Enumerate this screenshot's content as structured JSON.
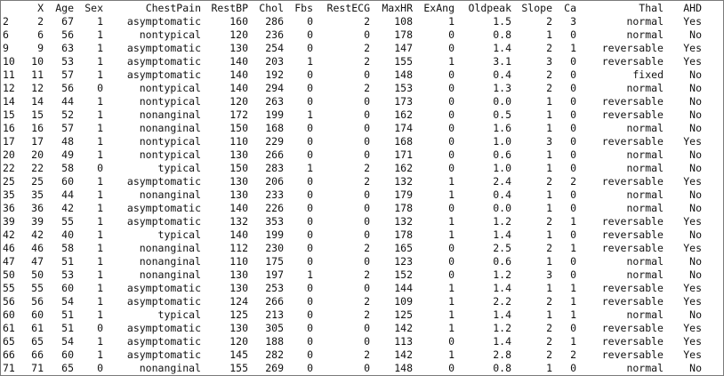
{
  "table": {
    "columns": [
      "",
      "X",
      "Age",
      "Sex",
      "ChestPain",
      "RestBP",
      "Chol",
      "Fbs",
      "RestECG",
      "MaxHR",
      "ExAng",
      "Oldpeak",
      "Slope",
      "Ca",
      "Thal",
      "AHD"
    ],
    "rows": [
      [
        "2",
        "2",
        "67",
        "1",
        "asymptomatic",
        "160",
        "286",
        "0",
        "2",
        "108",
        "1",
        "1.5",
        "2",
        "3",
        "normal",
        "Yes"
      ],
      [
        "6",
        "6",
        "56",
        "1",
        "nontypical",
        "120",
        "236",
        "0",
        "0",
        "178",
        "0",
        "0.8",
        "1",
        "0",
        "normal",
        "No"
      ],
      [
        "9",
        "9",
        "63",
        "1",
        "asymptomatic",
        "130",
        "254",
        "0",
        "2",
        "147",
        "0",
        "1.4",
        "2",
        "1",
        "reversable",
        "Yes"
      ],
      [
        "10",
        "10",
        "53",
        "1",
        "asymptomatic",
        "140",
        "203",
        "1",
        "2",
        "155",
        "1",
        "3.1",
        "3",
        "0",
        "reversable",
        "Yes"
      ],
      [
        "11",
        "11",
        "57",
        "1",
        "asymptomatic",
        "140",
        "192",
        "0",
        "0",
        "148",
        "0",
        "0.4",
        "2",
        "0",
        "fixed",
        "No"
      ],
      [
        "12",
        "12",
        "56",
        "0",
        "nontypical",
        "140",
        "294",
        "0",
        "2",
        "153",
        "0",
        "1.3",
        "2",
        "0",
        "normal",
        "No"
      ],
      [
        "14",
        "14",
        "44",
        "1",
        "nontypical",
        "120",
        "263",
        "0",
        "0",
        "173",
        "0",
        "0.0",
        "1",
        "0",
        "reversable",
        "No"
      ],
      [
        "15",
        "15",
        "52",
        "1",
        "nonanginal",
        "172",
        "199",
        "1",
        "0",
        "162",
        "0",
        "0.5",
        "1",
        "0",
        "reversable",
        "No"
      ],
      [
        "16",
        "16",
        "57",
        "1",
        "nonanginal",
        "150",
        "168",
        "0",
        "0",
        "174",
        "0",
        "1.6",
        "1",
        "0",
        "normal",
        "No"
      ],
      [
        "17",
        "17",
        "48",
        "1",
        "nontypical",
        "110",
        "229",
        "0",
        "0",
        "168",
        "0",
        "1.0",
        "3",
        "0",
        "reversable",
        "Yes"
      ],
      [
        "20",
        "20",
        "49",
        "1",
        "nontypical",
        "130",
        "266",
        "0",
        "0",
        "171",
        "0",
        "0.6",
        "1",
        "0",
        "normal",
        "No"
      ],
      [
        "22",
        "22",
        "58",
        "0",
        "typical",
        "150",
        "283",
        "1",
        "2",
        "162",
        "0",
        "1.0",
        "1",
        "0",
        "normal",
        "No"
      ],
      [
        "25",
        "25",
        "60",
        "1",
        "asymptomatic",
        "130",
        "206",
        "0",
        "2",
        "132",
        "1",
        "2.4",
        "2",
        "2",
        "reversable",
        "Yes"
      ],
      [
        "35",
        "35",
        "44",
        "1",
        "nonanginal",
        "130",
        "233",
        "0",
        "0",
        "179",
        "1",
        "0.4",
        "1",
        "0",
        "normal",
        "No"
      ],
      [
        "36",
        "36",
        "42",
        "1",
        "asymptomatic",
        "140",
        "226",
        "0",
        "0",
        "178",
        "0",
        "0.0",
        "1",
        "0",
        "normal",
        "No"
      ],
      [
        "39",
        "39",
        "55",
        "1",
        "asymptomatic",
        "132",
        "353",
        "0",
        "0",
        "132",
        "1",
        "1.2",
        "2",
        "1",
        "reversable",
        "Yes"
      ],
      [
        "42",
        "42",
        "40",
        "1",
        "typical",
        "140",
        "199",
        "0",
        "0",
        "178",
        "1",
        "1.4",
        "1",
        "0",
        "reversable",
        "No"
      ],
      [
        "46",
        "46",
        "58",
        "1",
        "nonanginal",
        "112",
        "230",
        "0",
        "2",
        "165",
        "0",
        "2.5",
        "2",
        "1",
        "reversable",
        "Yes"
      ],
      [
        "47",
        "47",
        "51",
        "1",
        "nonanginal",
        "110",
        "175",
        "0",
        "0",
        "123",
        "0",
        "0.6",
        "1",
        "0",
        "normal",
        "No"
      ],
      [
        "50",
        "50",
        "53",
        "1",
        "nonanginal",
        "130",
        "197",
        "1",
        "2",
        "152",
        "0",
        "1.2",
        "3",
        "0",
        "normal",
        "No"
      ],
      [
        "55",
        "55",
        "60",
        "1",
        "asymptomatic",
        "130",
        "253",
        "0",
        "0",
        "144",
        "1",
        "1.4",
        "1",
        "1",
        "reversable",
        "Yes"
      ],
      [
        "56",
        "56",
        "54",
        "1",
        "asymptomatic",
        "124",
        "266",
        "0",
        "2",
        "109",
        "1",
        "2.2",
        "2",
        "1",
        "reversable",
        "Yes"
      ],
      [
        "60",
        "60",
        "51",
        "1",
        "typical",
        "125",
        "213",
        "0",
        "2",
        "125",
        "1",
        "1.4",
        "1",
        "1",
        "normal",
        "No"
      ],
      [
        "61",
        "61",
        "51",
        "0",
        "asymptomatic",
        "130",
        "305",
        "0",
        "0",
        "142",
        "1",
        "1.2",
        "2",
        "0",
        "reversable",
        "Yes"
      ],
      [
        "65",
        "65",
        "54",
        "1",
        "asymptomatic",
        "120",
        "188",
        "0",
        "0",
        "113",
        "0",
        "1.4",
        "2",
        "1",
        "reversable",
        "Yes"
      ],
      [
        "66",
        "66",
        "60",
        "1",
        "asymptomatic",
        "145",
        "282",
        "0",
        "2",
        "142",
        "1",
        "2.8",
        "2",
        "2",
        "reversable",
        "Yes"
      ],
      [
        "71",
        "71",
        "65",
        "0",
        "nonanginal",
        "155",
        "269",
        "0",
        "0",
        "148",
        "0",
        "0.8",
        "1",
        "0",
        "normal",
        "No"
      ]
    ]
  }
}
